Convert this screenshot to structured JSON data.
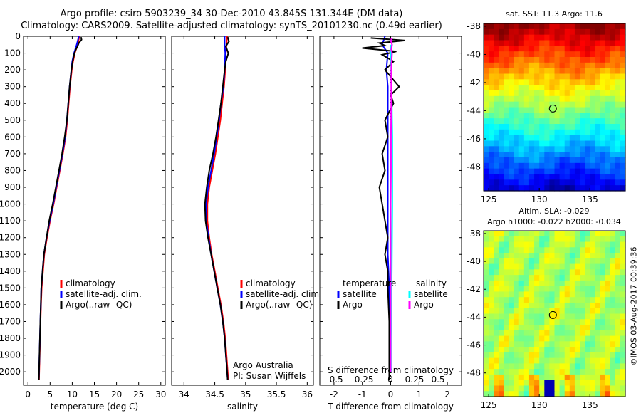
{
  "header": {
    "line1": "Argo profile: csiro 5903239_34 30-Dec-2010 43.845S 131.344E (DM data)",
    "line2": "Climatology: CARS2009. Satellite-adjusted climatology: synTS_20101230.nc (0.49d earlier)"
  },
  "side_label": "©IMOS 03-Aug-2017 00:39:36",
  "colors": {
    "climatology": "#ff0000",
    "satellite": "#0000ff",
    "argo": "#000000",
    "salinity_sat": "#00ffff",
    "salinity_argo": "#ff00ff"
  },
  "chart_data": [
    {
      "type": "line",
      "id": "temperature",
      "xlabel": "temperature (deg C)",
      "ylabel": "",
      "xlim": [
        -1,
        31
      ],
      "ylim": [
        2080,
        0
      ],
      "xticks": [
        0,
        5,
        10,
        15,
        20,
        25,
        30
      ],
      "yticks": [
        0,
        100,
        200,
        300,
        400,
        500,
        600,
        700,
        800,
        900,
        1000,
        1100,
        1200,
        1300,
        1400,
        1500,
        1600,
        1700,
        1800,
        1900,
        2000
      ],
      "legend": [
        "climatology",
        "satellite-adj. clim.",
        "Argo(..raw -QC)"
      ],
      "series": [
        {
          "name": "climatology",
          "color": "#ff0000",
          "depth": [
            0,
            30,
            60,
            100,
            150,
            200,
            300,
            400,
            500,
            600,
            700,
            800,
            900,
            1000,
            1100,
            1200,
            1300,
            1400,
            1500,
            1600,
            1700,
            1800,
            1900,
            2000,
            2050
          ],
          "values": [
            11.6,
            11.4,
            11.1,
            10.6,
            10.2,
            9.9,
            9.5,
            9.2,
            8.9,
            8.5,
            7.9,
            7.2,
            6.5,
            5.8,
            5.0,
            4.3,
            3.7,
            3.4,
            3.1,
            2.95,
            2.85,
            2.75,
            2.65,
            2.55,
            2.5
          ]
        },
        {
          "name": "satellite",
          "color": "#0000ff",
          "depth": [
            0,
            30,
            60,
            100,
            150,
            200,
            300,
            400,
            500,
            600,
            700,
            800,
            900,
            1000,
            1100,
            1200,
            1300,
            1400,
            1500,
            1600,
            1700,
            1800,
            1900,
            2000,
            2050
          ],
          "values": [
            11.5,
            11.2,
            10.9,
            10.4,
            10.0,
            9.8,
            9.4,
            9.1,
            8.8,
            8.4,
            7.8,
            7.1,
            6.4,
            5.7,
            4.9,
            4.2,
            3.6,
            3.3,
            3.0,
            2.9,
            2.8,
            2.7,
            2.6,
            2.5,
            2.45
          ]
        },
        {
          "name": "Argo",
          "color": "#000000",
          "depth": [
            5,
            20,
            40,
            60,
            80,
            100,
            150,
            200,
            300,
            400,
            500,
            600,
            700,
            800,
            900,
            1000,
            1100,
            1200,
            1300,
            1400,
            1500,
            1600,
            1700,
            1800,
            1900,
            2000,
            2050
          ],
          "values": [
            12.0,
            12.1,
            11.5,
            11.2,
            10.8,
            10.5,
            10.1,
            9.8,
            9.4,
            9.1,
            8.8,
            8.3,
            7.7,
            7.0,
            6.3,
            5.6,
            4.8,
            4.2,
            3.6,
            3.3,
            3.0,
            2.9,
            2.8,
            2.7,
            2.6,
            2.5,
            2.45
          ]
        }
      ]
    },
    {
      "type": "line",
      "id": "salinity",
      "xlabel": "salinity",
      "xlim": [
        33.8,
        36.1
      ],
      "ylim": [
        2080,
        0
      ],
      "xticks": [
        34,
        34.5,
        35,
        35.5,
        36
      ],
      "legend": [
        "climatology",
        "satellite-adj. clim.",
        "Argo(..raw -QC)"
      ],
      "annotation": [
        "Argo Australia",
        "PI: Susan Wijffels"
      ],
      "series": [
        {
          "name": "climatology",
          "color": "#ff0000",
          "depth": [
            0,
            50,
            100,
            200,
            300,
            400,
            500,
            600,
            700,
            800,
            900,
            1000,
            1100,
            1200,
            1300,
            1400,
            1500,
            1600,
            1700,
            1800,
            1900,
            2000,
            2050
          ],
          "values": [
            34.7,
            34.69,
            34.68,
            34.67,
            34.65,
            34.62,
            34.59,
            34.55,
            34.51,
            34.46,
            34.41,
            34.38,
            34.38,
            34.41,
            34.45,
            34.5,
            34.55,
            34.6,
            34.64,
            34.67,
            34.69,
            34.71,
            34.72
          ]
        },
        {
          "name": "satellite",
          "color": "#0000ff",
          "depth": [
            0,
            50,
            100,
            200,
            300,
            400,
            500,
            600,
            700,
            800,
            900,
            1000,
            1100,
            1200,
            1300,
            1400,
            1500,
            1600,
            1700,
            1800,
            1900,
            2000,
            2050
          ],
          "values": [
            34.66,
            34.66,
            34.67,
            34.66,
            34.64,
            34.6,
            34.57,
            34.53,
            34.49,
            34.44,
            34.39,
            34.36,
            34.36,
            34.4,
            34.44,
            34.49,
            34.54,
            34.59,
            34.63,
            34.66,
            34.68,
            34.7,
            34.71
          ]
        },
        {
          "name": "Argo",
          "color": "#000000",
          "depth": [
            5,
            30,
            60,
            100,
            150,
            200,
            300,
            400,
            500,
            600,
            700,
            800,
            900,
            1000,
            1100,
            1200,
            1300,
            1400,
            1500,
            1600,
            1700,
            1800,
            1900,
            2000,
            2050
          ],
          "values": [
            34.71,
            34.73,
            34.68,
            34.72,
            34.68,
            34.66,
            34.63,
            34.6,
            34.56,
            34.52,
            34.47,
            34.41,
            34.37,
            34.34,
            34.35,
            34.39,
            34.44,
            34.49,
            34.54,
            34.59,
            34.63,
            34.66,
            34.68,
            34.7,
            34.71
          ]
        }
      ]
    },
    {
      "type": "line",
      "id": "difference",
      "xlabel": "T difference from climatology",
      "xlabel2": "S difference from climatology",
      "xlim": [
        -2.5,
        2.5
      ],
      "ylim": [
        2080,
        0
      ],
      "xticks": [
        -2,
        -1,
        0,
        1,
        2
      ],
      "xticks_s": [
        -0.5,
        -0.25,
        0,
        0.25,
        0.5
      ],
      "legend_t": {
        "title": "temperature",
        "items": [
          "satellite",
          "Argo"
        ]
      },
      "legend_s": {
        "title": "salinity",
        "items": [
          "satellite",
          "Argo"
        ]
      },
      "series": [
        {
          "name": "T satellite",
          "color": "#0000ff",
          "depth": [
            0,
            50,
            100,
            200,
            300,
            400,
            500,
            700,
            900,
            1100,
            1300,
            1500,
            1700,
            1900,
            2050
          ],
          "values": [
            -0.2,
            -0.3,
            -0.1,
            -0.15,
            -0.1,
            -0.1,
            -0.1,
            -0.1,
            -0.1,
            -0.1,
            -0.1,
            -0.05,
            -0.05,
            -0.05,
            -0.05
          ]
        },
        {
          "name": "T Argo",
          "color": "#000000",
          "depth": [
            10,
            25,
            40,
            55,
            70,
            90,
            110,
            150,
            200,
            300,
            350,
            400,
            500,
            600,
            700,
            800,
            900,
            1000,
            1100,
            1200,
            1300,
            1400,
            1500,
            1700,
            1900,
            2050
          ],
          "values": [
            -0.7,
            0.5,
            -0.4,
            -0.2,
            -1.0,
            0.2,
            -0.3,
            0.1,
            -0.2,
            0.3,
            0.0,
            0.1,
            -0.2,
            -0.1,
            -0.3,
            -0.2,
            -0.4,
            -0.3,
            -0.2,
            -0.1,
            -0.2,
            -0.1,
            -0.1,
            -0.05,
            -0.05,
            -0.05
          ]
        },
        {
          "name": "S satellite",
          "color": "#00ffff",
          "depth": [
            50,
            100,
            200,
            300,
            400,
            500,
            600,
            700,
            800,
            1000,
            1200,
            1400,
            1600,
            1800,
            2000
          ],
          "values": [
            0.0,
            0.01,
            0.02,
            0.03,
            0.04,
            0.05,
            0.06,
            0.06,
            0.06,
            0.06,
            0.05,
            0.04,
            0.02,
            0.01,
            0.01
          ]
        },
        {
          "name": "S Argo",
          "color": "#ff00ff",
          "depth": [
            10,
            30,
            50,
            80,
            100,
            150,
            200,
            300,
            400,
            600,
            800,
            1000,
            1200,
            1400,
            1600,
            1800,
            2000
          ],
          "values": [
            0.03,
            0.01,
            0.05,
            0.02,
            0.05,
            0.03,
            0.02,
            0.02,
            0.02,
            0.01,
            0.01,
            0.0,
            0.0,
            0.0,
            0.0,
            0.0,
            0.0
          ]
        }
      ]
    },
    {
      "type": "heatmap",
      "id": "sst_map",
      "title": "sat. SST: 11.3 Argo: 11.6",
      "xlim": [
        124.5,
        138.5
      ],
      "ylim": [
        -49.7,
        -37.8
      ],
      "xticks": [
        125,
        130,
        135
      ],
      "yticks": [
        -38,
        -40,
        -42,
        -44,
        -46,
        -48
      ],
      "marker": {
        "lon": 131.344,
        "lat": -43.845
      }
    },
    {
      "type": "heatmap",
      "id": "sla_map",
      "title": "Altim. SLA: -0.029",
      "title2": "Argo h1000: -0.022 h2000: -0.034",
      "xlim": [
        124.5,
        138.5
      ],
      "ylim": [
        -49.7,
        -37.8
      ],
      "xticks": [
        125,
        130,
        135
      ],
      "yticks": [
        -38,
        -40,
        -42,
        -44,
        -46,
        -48
      ],
      "marker": {
        "lon": 131.344,
        "lat": -43.845
      }
    }
  ]
}
